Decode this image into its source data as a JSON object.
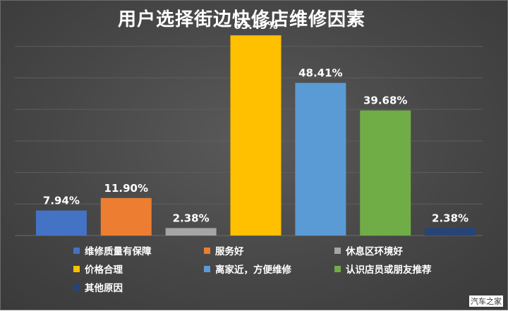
{
  "chart_data": {
    "type": "bar",
    "title": "用户选择街边快修店维修因素",
    "xlabel": "",
    "ylabel": "",
    "ylim": [
      0,
      70
    ],
    "grid": true,
    "legend_position": "bottom",
    "categories": [
      "维修质量有保障",
      "服务好",
      "休息区环境好",
      "价格合理",
      "离家近，方便维修",
      "认识店员或朋友推荐",
      "其他原因"
    ],
    "values": [
      7.94,
      11.9,
      2.38,
      63.49,
      48.41,
      39.68,
      2.38
    ],
    "data_labels": [
      "7.94%",
      "11.90%",
      "2.38%",
      "63.49%",
      "48.41%",
      "39.68%",
      "2.38%"
    ],
    "colors": [
      "#4472C4",
      "#ED7D31",
      "#A5A5A5",
      "#FFC000",
      "#5B9BD5",
      "#70AD47",
      "#264478"
    ]
  },
  "watermark": "汽车之家"
}
